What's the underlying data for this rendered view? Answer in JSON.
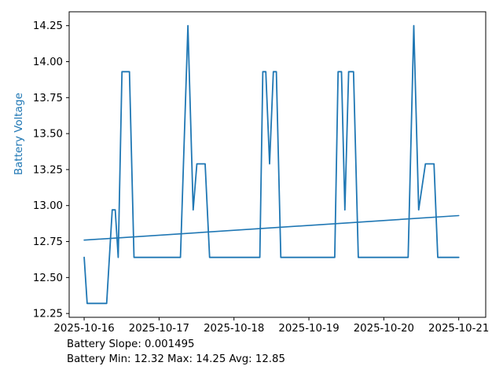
{
  "figure": {
    "background": "#ffffff",
    "accent_color": "#1f77b4",
    "spine_color": "#000000"
  },
  "axes": {
    "ylabel": "Battery Voltage",
    "ylabel_color": "#1f77b4"
  },
  "footer": {
    "line1": "Battery Slope: 0.001495",
    "line2": "Battery Min: 12.32 Max: 14.25 Avg: 12.85"
  },
  "chart_data": {
    "type": "line",
    "title": "",
    "xlabel": "",
    "ylabel": "Battery Voltage",
    "x_unit": "days since 2025-10-16",
    "grid": false,
    "legend": null,
    "xlim": [
      -0.2,
      5.36
    ],
    "ylim": [
      12.2235,
      14.3465
    ],
    "x_ticks": [
      0,
      1,
      2,
      3,
      4,
      5
    ],
    "x_tick_labels": [
      "2025-10-16",
      "2025-10-17",
      "2025-10-18",
      "2025-10-19",
      "2025-10-20",
      "2025-10-21"
    ],
    "y_ticks": [
      12.25,
      12.5,
      12.75,
      13.0,
      13.25,
      13.5,
      13.75,
      14.0,
      14.25
    ],
    "stats": {
      "slope": 0.001495,
      "min": 12.32,
      "max": 14.25,
      "avg": 12.85
    },
    "series": [
      {
        "key": "battery-voltage-line",
        "name": "Battery Voltage",
        "color": "#1f77b4",
        "width": 1.8,
        "points": [
          [
            0.0,
            12.64
          ],
          [
            0.04,
            12.32
          ],
          [
            0.3,
            12.32
          ],
          [
            0.375,
            12.97
          ],
          [
            0.415,
            12.97
          ],
          [
            0.455,
            12.64
          ],
          [
            0.505,
            13.93
          ],
          [
            0.605,
            13.93
          ],
          [
            0.665,
            12.64
          ],
          [
            1.285,
            12.64
          ],
          [
            1.385,
            14.25
          ],
          [
            1.455,
            12.97
          ],
          [
            1.505,
            13.29
          ],
          [
            1.615,
            13.29
          ],
          [
            1.675,
            12.64
          ],
          [
            2.345,
            12.64
          ],
          [
            2.385,
            13.93
          ],
          [
            2.425,
            13.93
          ],
          [
            2.475,
            13.29
          ],
          [
            2.525,
            13.93
          ],
          [
            2.565,
            13.93
          ],
          [
            2.625,
            12.64
          ],
          [
            3.345,
            12.64
          ],
          [
            3.39,
            13.93
          ],
          [
            3.435,
            13.93
          ],
          [
            3.48,
            12.97
          ],
          [
            3.53,
            13.93
          ],
          [
            3.595,
            13.93
          ],
          [
            3.66,
            12.64
          ],
          [
            4.325,
            12.64
          ],
          [
            4.4,
            14.25
          ],
          [
            4.465,
            12.97
          ],
          [
            4.555,
            13.29
          ],
          [
            4.67,
            13.29
          ],
          [
            4.72,
            12.64
          ],
          [
            5.0,
            12.64
          ]
        ]
      },
      {
        "key": "trend-line",
        "name": "Battery Voltage linear trend",
        "color": "#1f77b4",
        "width": 1.6,
        "points": [
          [
            0.0,
            12.76
          ],
          [
            5.0,
            12.93
          ]
        ]
      }
    ]
  }
}
